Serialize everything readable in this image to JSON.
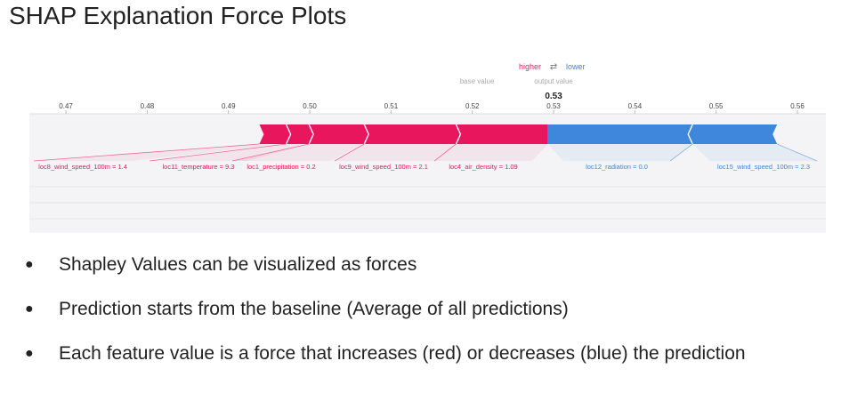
{
  "slide": {
    "title": "SHAP Explanation Force Plots",
    "bullets": [
      "Shapley Values can be visualized as forces",
      "Prediction starts from the baseline (Average of all predictions)",
      "Each feature value is a force that increases (red) or decreases (blue) the prediction"
    ]
  },
  "chart_data": {
    "type": "force",
    "legend": {
      "higher": "higher",
      "arrows": "⇄",
      "lower": "lower"
    },
    "base_value_label": "base value",
    "output_value_label": "output value",
    "output_value": 0.53,
    "output_value_text": "0.53",
    "xlim": [
      0.4655,
      0.5635
    ],
    "ticks": [
      0.47,
      0.48,
      0.49,
      0.5,
      0.51,
      0.52,
      0.53,
      0.54,
      0.55,
      0.56
    ],
    "tick_labels": [
      "0.47",
      "0.48",
      "0.49",
      "0.50",
      "0.51",
      "0.52",
      "0.53",
      "0.54",
      "0.55",
      "0.56"
    ],
    "higher_color": "#e8175d",
    "lower_color": "#3f87dc",
    "positive_segments": [
      {
        "label": "loc8_wind_speed_100m = 1.4",
        "from": 0.4938,
        "to": 0.4971
      },
      {
        "label": "loc11_temperature = 9.3",
        "from": 0.4971,
        "to": 0.4999
      },
      {
        "label": "loc1_precipitation = 0.2",
        "from": 0.4999,
        "to": 0.5067
      },
      {
        "label": "loc9_wind_speed_100m = 2.1",
        "from": 0.5067,
        "to": 0.518
      },
      {
        "label": "loc4_air_density = 1.09",
        "from": 0.518,
        "to": 0.5293
      }
    ],
    "negative_segments": [
      {
        "label": "loc12_radiation = 0.0",
        "from": 0.5293,
        "to": 0.5471
      },
      {
        "label": "loc15_wind_speed_100m = 2.3",
        "from": 0.5471,
        "to": 0.5575
      }
    ]
  }
}
